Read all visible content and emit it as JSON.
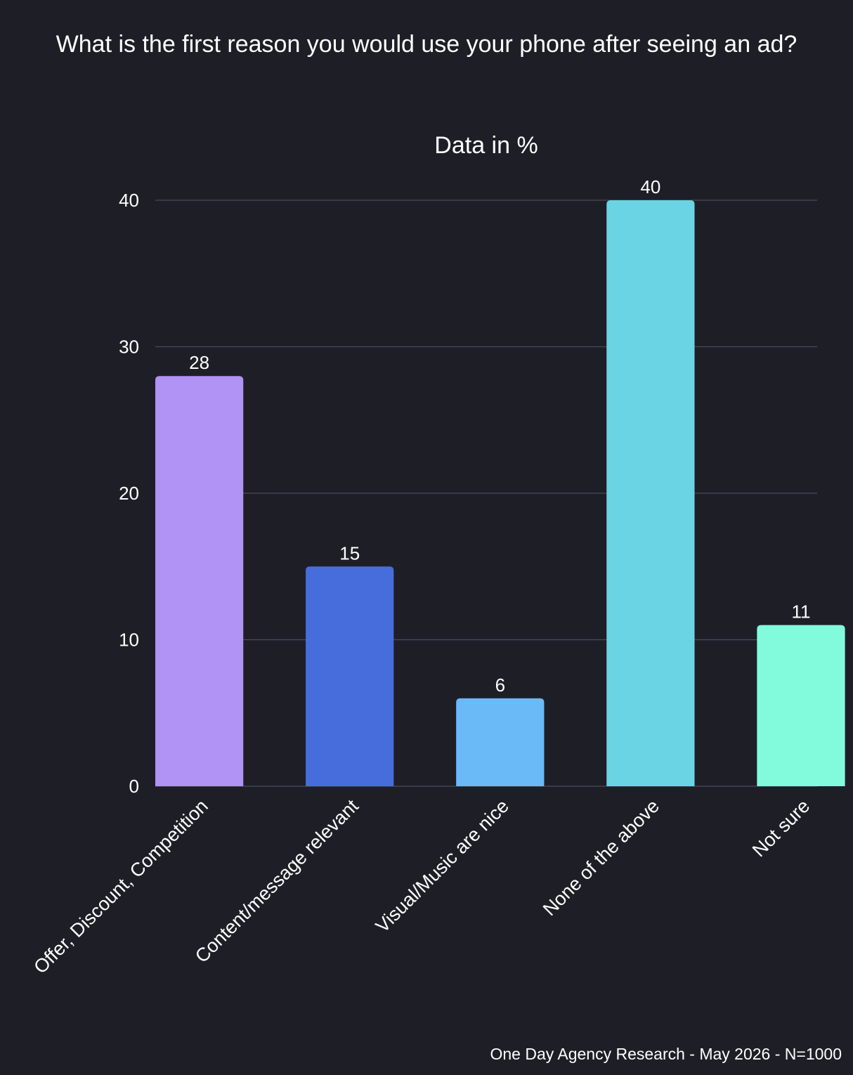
{
  "chart_data": {
    "type": "bar",
    "title": "What is the first reason you would use your phone after seeing an ad?",
    "subtitle": "Data in %",
    "categories": [
      "Offer, Discount, Competition",
      "Content/message relevant",
      "Visual/Music are nice",
      "None of the above",
      "Not sure"
    ],
    "values": [
      28,
      15,
      6,
      40,
      11
    ],
    "colors": [
      "#b093f5",
      "#476ddc",
      "#6abaf7",
      "#6ad4e4",
      "#82fbdc"
    ],
    "ylim": [
      0,
      40
    ],
    "yticks": [
      0,
      10,
      20,
      30,
      40
    ],
    "grid": true,
    "legend": "none",
    "footer": "One Day Agency Research - May 2026 - N=1000"
  }
}
